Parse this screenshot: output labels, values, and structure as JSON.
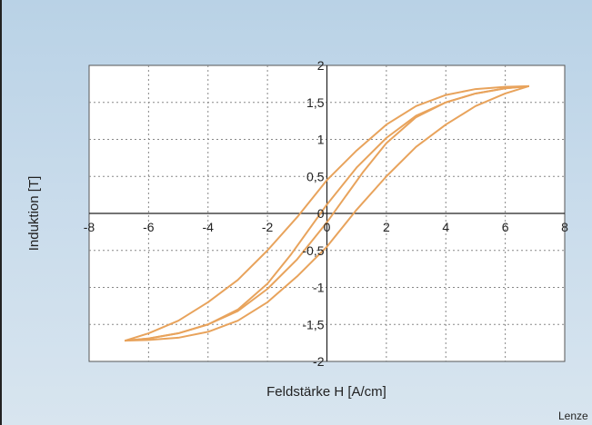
{
  "chart_data": {
    "type": "line",
    "xlabel": "Feldstärke H [A/cm]",
    "ylabel": "Induktion [T]",
    "xlim": [
      -8,
      8
    ],
    "ylim": [
      -2,
      2
    ],
    "x_ticks": [
      "-8",
      "-6",
      "-4",
      "-2",
      "0",
      "2",
      "4",
      "6",
      "8"
    ],
    "y_ticks": [
      "2",
      "1,5",
      "1",
      "0,5",
      "0",
      "-0,5",
      "-1",
      "-1,5",
      "-2"
    ],
    "grid": true,
    "series_color": "#e8a35c",
    "series": [
      {
        "x": [
          -6.8,
          -6,
          -5,
          -4,
          -3,
          -2,
          -1.2,
          0,
          1,
          2,
          3,
          4,
          5,
          6,
          6.8
        ],
        "y": [
          -1.72,
          -1.69,
          -1.62,
          -1.5,
          -1.3,
          -0.95,
          -0.55,
          0.12,
          0.62,
          1.02,
          1.32,
          1.5,
          1.62,
          1.69,
          1.72
        ]
      },
      {
        "x": [
          6.8,
          6,
          5,
          4,
          3,
          2,
          1.2,
          0,
          -1,
          -2,
          -3,
          -4,
          -5,
          -6,
          -6.8
        ],
        "y": [
          1.72,
          1.69,
          1.62,
          1.5,
          1.3,
          0.95,
          0.55,
          -0.12,
          -0.62,
          -1.02,
          -1.32,
          -1.5,
          -1.62,
          -1.69,
          -1.72
        ]
      },
      {
        "x": [
          -6.8,
          -6,
          -5,
          -4,
          -3,
          -2,
          -1,
          0,
          1,
          2,
          3,
          4,
          5,
          6,
          6.8
        ],
        "y": [
          -1.72,
          -1.62,
          -1.45,
          -1.2,
          -0.9,
          -0.5,
          -0.05,
          0.45,
          0.85,
          1.2,
          1.45,
          1.6,
          1.68,
          1.71,
          1.72
        ]
      },
      {
        "x": [
          6.8,
          6,
          5,
          4,
          3,
          2,
          1,
          0,
          -1,
          -2,
          -3,
          -4,
          -5,
          -6,
          -6.8
        ],
        "y": [
          1.72,
          1.62,
          1.45,
          1.2,
          0.9,
          0.5,
          0.05,
          -0.45,
          -0.85,
          -1.2,
          -1.45,
          -1.6,
          -1.68,
          -1.71,
          -1.72
        ]
      }
    ]
  },
  "credit": "Lenze"
}
